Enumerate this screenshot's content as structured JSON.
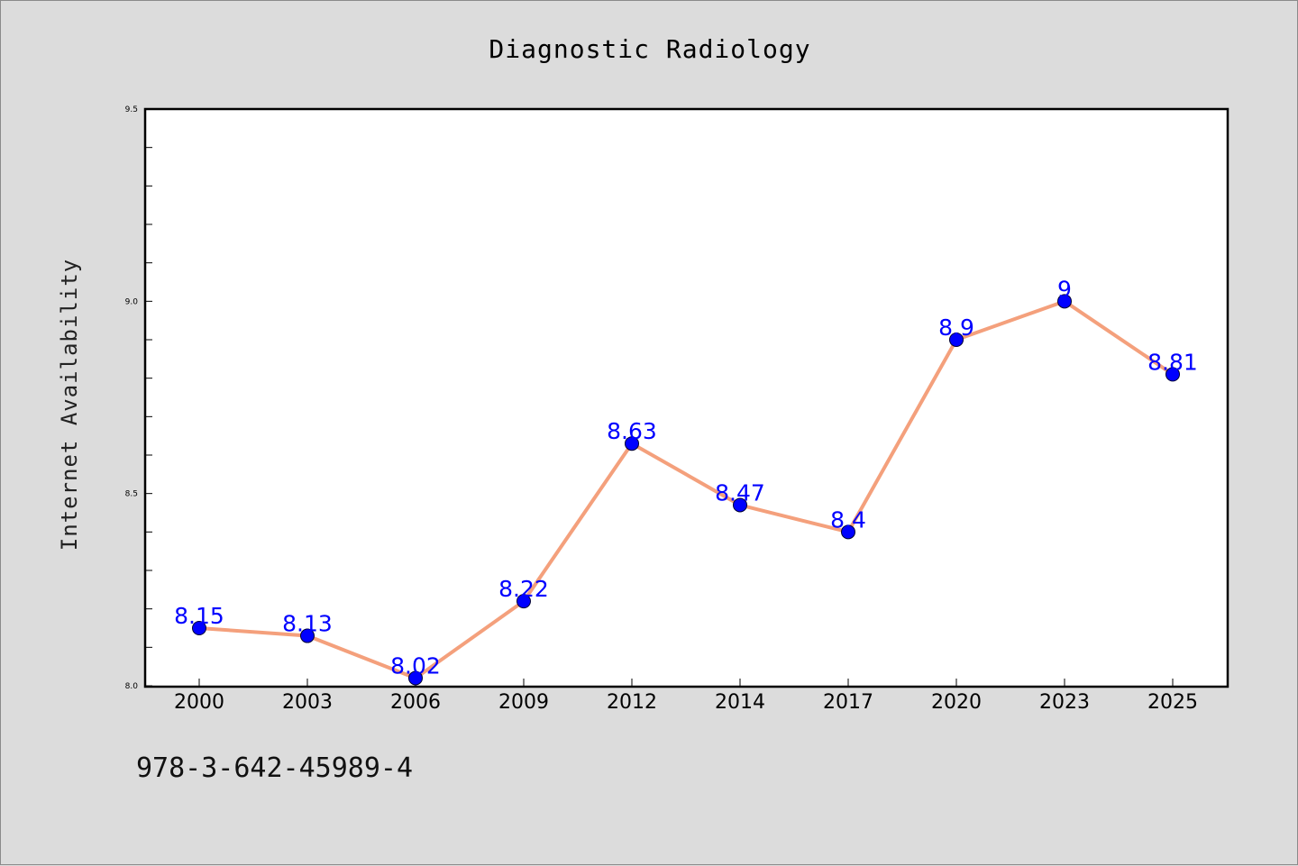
{
  "chart_data": {
    "type": "line",
    "title": "Diagnostic Radiology",
    "xlabel": "",
    "ylabel": "Internet Availability",
    "categories": [
      "2000",
      "2003",
      "2006",
      "2009",
      "2012",
      "2014",
      "2017",
      "2020",
      "2023",
      "2025"
    ],
    "series": [
      {
        "values": [
          8.15,
          8.13,
          8.02,
          8.22,
          8.63,
          8.47,
          8.4,
          8.9,
          9,
          8.81
        ],
        "labels": [
          "8.15",
          "8.13",
          "8.02",
          "8.22",
          "8.63",
          "8.47",
          "8.4",
          "8.9",
          "9",
          "8.81"
        ],
        "line_color": "#f4a07c",
        "marker_color": "#0000ff"
      }
    ],
    "ylim": [
      8.0,
      9.5
    ],
    "yticks": [
      "8.0",
      "8.5",
      "9.0",
      "9.5"
    ],
    "grid": false,
    "legend": "none"
  },
  "footer": {
    "isbn": "978-3-642-45989-4"
  },
  "colors": {
    "background": "#dcdcdc",
    "plot_area": "#ffffff"
  }
}
